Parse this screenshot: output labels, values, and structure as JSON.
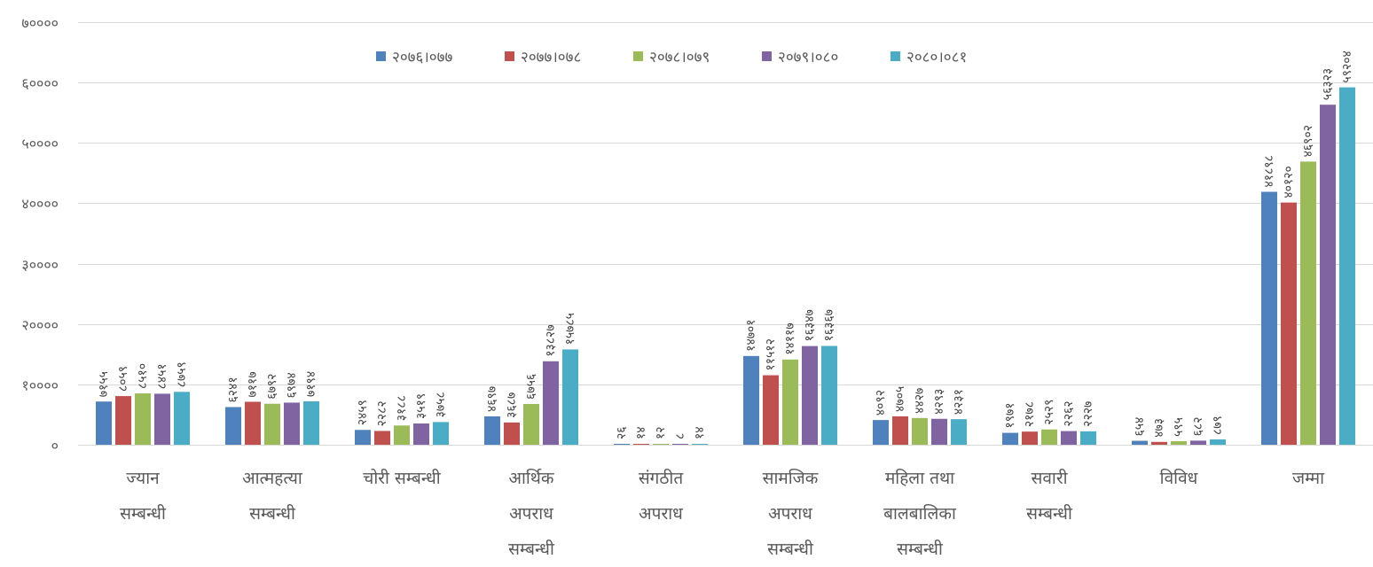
{
  "chart_data": {
    "type": "bar",
    "ylim": [
      0,
      70000
    ],
    "yticks": [
      0,
      10000,
      20000,
      30000,
      40000,
      50000,
      60000,
      70000
    ],
    "ytick_labels": [
      "०",
      "१००००",
      "२००००",
      "३००००",
      "४००००",
      "५००००",
      "६००००",
      "७००००"
    ],
    "grid": true,
    "legend_position": "top",
    "categories": [
      [
        "ज्यान",
        "सम्बन्धी"
      ],
      [
        "आत्महत्या",
        "सम्बन्धी"
      ],
      [
        "चोरी  सम्बन्धी"
      ],
      [
        "आर्थिक",
        "अपराध",
        "सम्बन्धी"
      ],
      [
        "संगठीत",
        "अपराध"
      ],
      [
        "सामजिक",
        "अपराध",
        "सम्बन्धी"
      ],
      [
        "महिला  तथा",
        "बालबालिका",
        "सम्बन्धी"
      ],
      [
        "सवारी",
        "सम्बन्धी"
      ],
      [
        "विविध"
      ],
      [
        "जम्मा"
      ]
    ],
    "series": [
      {
        "name": "२०७६।०७७",
        "color": "#4f81bd",
        "values": [
          7155,
          6241,
          2459,
          4697,
          26,
          14701,
          4092,
          1971,
          654,
          41898
        ],
        "labels": [
          "७१५५",
          "६२४१",
          "२४५९",
          "४६९७",
          "२६",
          "१४७०१",
          "४०९२",
          "१९७१",
          "६५४",
          "४१८९८"
        ]
      },
      {
        "name": "२०७७।०७८",
        "color": "#c0504d",
        "values": [
          8059,
          7117,
          2282,
          3687,
          14,
          11512,
          4705,
          2178,
          473,
          40120
        ],
        "labels": [
          "८०५९",
          "७११७",
          "२२८२",
          "३६८७",
          "१४",
          "११५१२",
          "४७०५",
          "२१७८",
          "४७३",
          "४०१२०"
        ]
      },
      {
        "name": "२०७८।०७९",
        "color": "#9bbb59",
        "values": [
          8510,
          6792,
          3188,
          6756,
          12,
          14117,
          4427,
          2529,
          595,
          46902
        ],
        "labels": [
          "८५१०",
          "६७९२",
          "३१८८",
          "६७५६",
          "१२",
          "१४११७",
          "४४२७",
          "२५२९",
          "५९५",
          "४६९०२"
        ]
      },
      {
        "name": "२०७९।०८०",
        "color": "#8064a2",
        "values": [
          8451,
          6974,
          3519,
          13827,
          8,
          16347,
          4293,
          2262,
          682,
          56323
        ],
        "labels": [
          "८४५१",
          "६९७४",
          "३५१९",
          "१३८२७",
          "८",
          "१६३४७",
          "४२९३",
          "२२६२",
          "६८२",
          "५६३२३"
        ]
      },
      {
        "name": "२०८०।०८१",
        "color": "#4bacc6",
        "values": [
          8759,
          7194,
          3758,
          15785,
          14,
          16367,
          4231,
          2227,
          879,
          59204
        ],
        "labels": [
          "८७५९",
          "७१९४",
          "३७५८",
          "१५७८५",
          "१४",
          "१६३६७",
          "४२३१",
          "२२२७",
          "८७९",
          "५९२०४"
        ]
      }
    ]
  }
}
